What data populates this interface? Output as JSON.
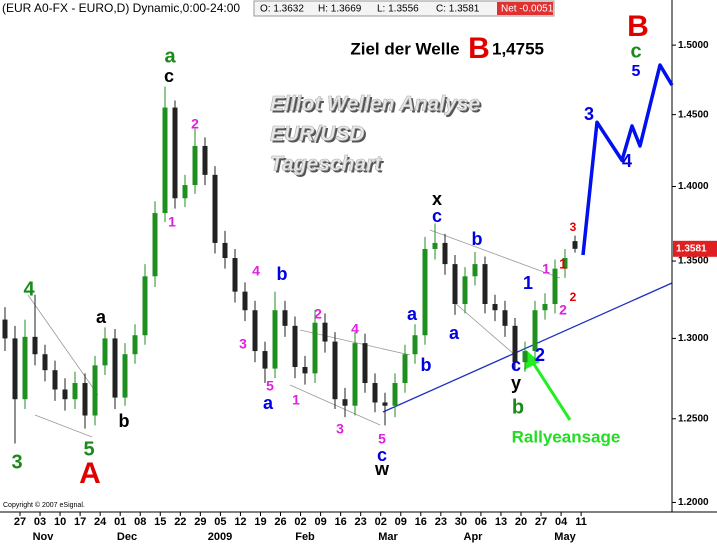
{
  "header": {
    "symbol": "(EUR A0-FX - EURO,D) Dynamic,0:00-24:00",
    "ohlc": [
      "O: 1.3632",
      "H: 1.3669",
      "L: 1.3556",
      "C: 1.3581"
    ],
    "net": "Net -0.0051"
  },
  "watermark": [
    "Elliot Wellen Analyse",
    "EUR/USD",
    "Tageschart"
  ],
  "target": {
    "label": "Ziel der Welle",
    "wave": "B",
    "price": "1,4755"
  },
  "rally_label": "Rallyeansage",
  "copyright": "Copyright © 2007 eSignal.",
  "chart_data": {
    "type": "candlestick",
    "log_y": true,
    "up_color": "#1f8f1f",
    "down_color": "#222222",
    "open": [
      1.312,
      1.3,
      1.262,
      1.301,
      1.29,
      1.28,
      1.268,
      1.262,
      1.272,
      1.252,
      1.283,
      1.3,
      1.263,
      1.29,
      1.302,
      1.34,
      1.382,
      1.455,
      1.392,
      1.401,
      1.428,
      1.408,
      1.362,
      1.352,
      1.33,
      1.318,
      1.292,
      1.281,
      1.318,
      1.308,
      1.282,
      1.278,
      1.31,
      1.298,
      1.262,
      1.258,
      1.297,
      1.272,
      1.26,
      1.258,
      1.272,
      1.29,
      1.302,
      1.358,
      1.362,
      1.348,
      1.322,
      1.34,
      1.348,
      1.322,
      1.318,
      1.308,
      1.285,
      1.292,
      1.318,
      1.322,
      1.345,
      1.3632
    ],
    "high": [
      1.32,
      1.308,
      1.312,
      1.328,
      1.296,
      1.286,
      1.275,
      1.279,
      1.278,
      1.289,
      1.307,
      1.306,
      1.297,
      1.309,
      1.348,
      1.39,
      1.47,
      1.46,
      1.408,
      1.44,
      1.434,
      1.414,
      1.37,
      1.358,
      1.336,
      1.324,
      1.298,
      1.33,
      1.324,
      1.314,
      1.289,
      1.318,
      1.316,
      1.304,
      1.269,
      1.304,
      1.303,
      1.278,
      1.266,
      1.278,
      1.296,
      1.309,
      1.366,
      1.375,
      1.368,
      1.354,
      1.346,
      1.356,
      1.353,
      1.328,
      1.324,
      1.313,
      1.298,
      1.324,
      1.329,
      1.351,
      1.358,
      1.3669
    ],
    "low": [
      1.292,
      1.235,
      1.256,
      1.283,
      1.273,
      1.261,
      1.255,
      1.256,
      1.244,
      1.246,
      1.277,
      1.256,
      1.258,
      1.284,
      1.296,
      1.333,
      1.376,
      1.385,
      1.386,
      1.395,
      1.401,
      1.355,
      1.345,
      1.323,
      1.311,
      1.285,
      1.272,
      1.275,
      1.301,
      1.275,
      1.271,
      1.272,
      1.291,
      1.256,
      1.251,
      1.252,
      1.266,
      1.254,
      1.246,
      1.251,
      1.266,
      1.284,
      1.296,
      1.351,
      1.341,
      1.315,
      1.316,
      1.334,
      1.316,
      1.311,
      1.301,
      1.28,
      1.279,
      1.286,
      1.312,
      1.316,
      1.339,
      1.3556
    ],
    "close": [
      1.3,
      1.262,
      1.301,
      1.29,
      1.28,
      1.268,
      1.262,
      1.272,
      1.252,
      1.283,
      1.3,
      1.263,
      1.29,
      1.302,
      1.34,
      1.382,
      1.455,
      1.392,
      1.401,
      1.428,
      1.408,
      1.362,
      1.352,
      1.33,
      1.318,
      1.292,
      1.281,
      1.318,
      1.308,
      1.282,
      1.278,
      1.31,
      1.298,
      1.262,
      1.258,
      1.297,
      1.272,
      1.26,
      1.258,
      1.272,
      1.29,
      1.302,
      1.358,
      1.362,
      1.348,
      1.322,
      1.34,
      1.348,
      1.322,
      1.318,
      1.308,
      1.285,
      1.292,
      1.318,
      1.322,
      1.345,
      1.352,
      1.3581
    ],
    "last_price_color": "#e02020",
    "forecast": {
      "color": "#0010ee",
      "values": [
        1.354,
        1.4446,
        1.418,
        1.442,
        1.428,
        1.4855,
        1.471
      ]
    },
    "ylim": [
      1.195,
      1.52
    ],
    "yticks": [
      {
        "value": 1.2,
        "label": "1.2000"
      },
      {
        "value": 1.25,
        "label": "1.2500"
      },
      {
        "value": 1.3,
        "label": "1.3000"
      },
      {
        "value": 1.35,
        "label": "1.3500"
      },
      {
        "value": 1.4,
        "label": "1.4000"
      },
      {
        "value": 1.45,
        "label": "1.4500"
      },
      {
        "value": 1.5,
        "label": "1.5000"
      }
    ],
    "xtick_labels": [
      "27",
      "03",
      "10",
      "17",
      "24",
      "01",
      "08",
      "15",
      "22",
      "29",
      "05",
      "12",
      "19",
      "26",
      "02",
      "09",
      "16",
      "23",
      "02",
      "09",
      "16",
      "23",
      "30",
      "06",
      "13",
      "20",
      "27",
      "04",
      "11"
    ],
    "months": [
      "Nov",
      "Dec",
      "2009",
      "Feb",
      "Mar",
      "Apr",
      "May"
    ],
    "annotations": [
      {
        "text": "4",
        "color": "#1a8a1a"
      },
      {
        "text": "3",
        "color": "#1a8a1a"
      },
      {
        "text": "5",
        "color": "#1a8a1a"
      },
      {
        "text": "A",
        "color": "#e00000"
      },
      {
        "text": "a",
        "color": "#000000"
      },
      {
        "text": "b",
        "color": "#000000"
      },
      {
        "text": "a",
        "color": "#1a8a1a"
      },
      {
        "text": "c",
        "color": "#000000"
      },
      {
        "text": "2",
        "color": "#e020e0"
      },
      {
        "text": "1",
        "color": "#e020e0"
      },
      {
        "text": "4",
        "color": "#e020e0"
      },
      {
        "text": "b",
        "color": "#0000e0"
      },
      {
        "text": "3",
        "color": "#e020e0"
      },
      {
        "text": "5",
        "color": "#e020e0"
      },
      {
        "text": "a",
        "color": "#0000e0"
      },
      {
        "text": "2",
        "color": "#e020e0"
      },
      {
        "text": "4",
        "color": "#e020e0"
      },
      {
        "text": "1",
        "color": "#e020e0"
      },
      {
        "text": "3",
        "color": "#e020e0"
      },
      {
        "text": "5",
        "color": "#e020e0"
      },
      {
        "text": "c",
        "color": "#0000e0"
      },
      {
        "text": "w",
        "color": "#000000"
      },
      {
        "text": "a",
        "color": "#0000e0"
      },
      {
        "text": "b",
        "color": "#0000e0"
      },
      {
        "text": "x",
        "color": "#000000"
      },
      {
        "text": "c",
        "color": "#0000e0"
      },
      {
        "text": "b",
        "color": "#0000e0"
      },
      {
        "text": "a",
        "color": "#0000e0"
      },
      {
        "text": "1",
        "color": "#0000e0"
      },
      {
        "text": "1",
        "color": "#e020e0"
      },
      {
        "text": "1",
        "color": "#e00000"
      },
      {
        "text": "3",
        "color": "#e00000"
      },
      {
        "text": "2",
        "color": "#e00000"
      },
      {
        "text": "2",
        "color": "#e020e0"
      },
      {
        "text": "2",
        "color": "#0000e0"
      },
      {
        "text": "c",
        "color": "#0000e0"
      },
      {
        "text": "y",
        "color": "#000000"
      },
      {
        "text": "b",
        "color": "#1a8a1a"
      },
      {
        "text": "3",
        "color": "#0000e0"
      },
      {
        "text": "4",
        "color": "#0000e0"
      },
      {
        "text": "5",
        "color": "#0000e0"
      },
      {
        "text": "c",
        "color": "#1a8a1a"
      },
      {
        "text": "B",
        "color": "#e00000"
      }
    ]
  }
}
